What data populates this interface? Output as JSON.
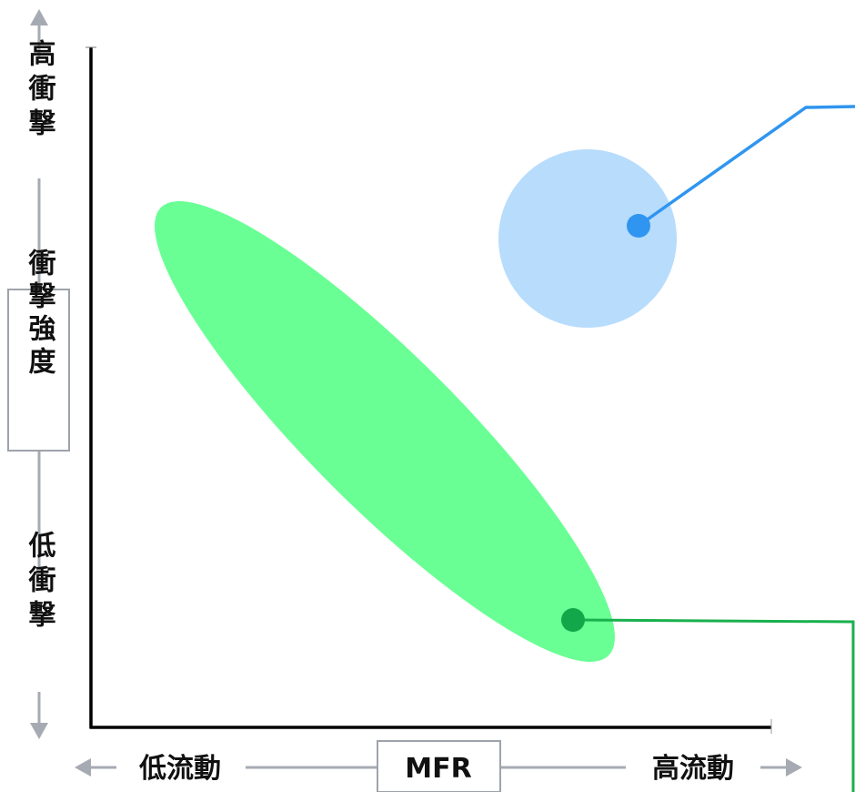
{
  "y_axis": {
    "top_label": "高衝撃",
    "middle_label": "衝撃強度",
    "bottom_label": "低衝撃"
  },
  "x_axis": {
    "left_label": "低流動",
    "middle_label": "MFR",
    "right_label": "高流動"
  },
  "colors": {
    "axis": "#000000",
    "arrow_gray": "#a6abb3",
    "box_border": "#9ea3aa",
    "green_region": "#69ff94",
    "green_marker": "#12a84a",
    "green_line": "#19b04e",
    "blue_region": "#b8dcfc",
    "blue_marker": "#2f95f0",
    "blue_line": "#2f95f0"
  }
}
